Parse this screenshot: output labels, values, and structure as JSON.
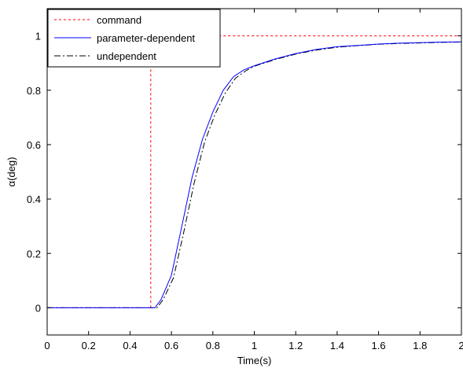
{
  "chart_data": {
    "type": "line",
    "title": "",
    "xlabel": "Time(s)",
    "ylabel": "α(deg)",
    "xlim": [
      0,
      2
    ],
    "ylim": [
      -0.1,
      1.1
    ],
    "xticks": [
      0,
      0.2,
      0.4,
      0.6,
      0.8,
      1,
      1.2,
      1.4,
      1.6,
      1.8,
      2
    ],
    "xtick_labels": [
      "0",
      "0.2",
      "0.4",
      "0.6",
      "0.8",
      "1",
      "1.2",
      "1.4",
      "1.6",
      "1.8",
      "2"
    ],
    "yticks": [
      0,
      0.2,
      0.4,
      0.6,
      0.8,
      1
    ],
    "ytick_labels": [
      "0",
      "0.2",
      "0.4",
      "0.6",
      "0.8",
      "1"
    ],
    "grid": false,
    "legend_position": "top-left",
    "series": [
      {
        "name": "command",
        "color": "#ff0000",
        "style": "dotted",
        "x": [
          0,
          0.5,
          0.5,
          2
        ],
        "y": [
          0,
          0,
          1,
          1
        ]
      },
      {
        "name": "parameter-dependent",
        "color": "#0000ff",
        "style": "solid",
        "x": [
          0,
          0.52,
          0.55,
          0.6,
          0.65,
          0.7,
          0.75,
          0.8,
          0.85,
          0.9,
          0.95,
          1.0,
          1.1,
          1.2,
          1.3,
          1.4,
          1.5,
          1.6,
          1.7,
          1.8,
          1.9,
          2.0
        ],
        "y": [
          0,
          0,
          0.03,
          0.12,
          0.3,
          0.48,
          0.62,
          0.72,
          0.8,
          0.85,
          0.875,
          0.89,
          0.915,
          0.935,
          0.95,
          0.96,
          0.965,
          0.97,
          0.973,
          0.975,
          0.977,
          0.978
        ]
      },
      {
        "name": "undependent",
        "color": "#000000",
        "style": "dashdot",
        "x": [
          0,
          0.53,
          0.56,
          0.61,
          0.66,
          0.71,
          0.76,
          0.81,
          0.86,
          0.91,
          0.96,
          1.0,
          1.1,
          1.2,
          1.3,
          1.4,
          1.5,
          1.6,
          1.7,
          1.8,
          1.9,
          2.0
        ],
        "y": [
          0,
          0,
          0.03,
          0.11,
          0.28,
          0.46,
          0.61,
          0.71,
          0.79,
          0.845,
          0.872,
          0.888,
          0.913,
          0.933,
          0.948,
          0.958,
          0.964,
          0.969,
          0.972,
          0.974,
          0.976,
          0.977
        ]
      }
    ]
  }
}
